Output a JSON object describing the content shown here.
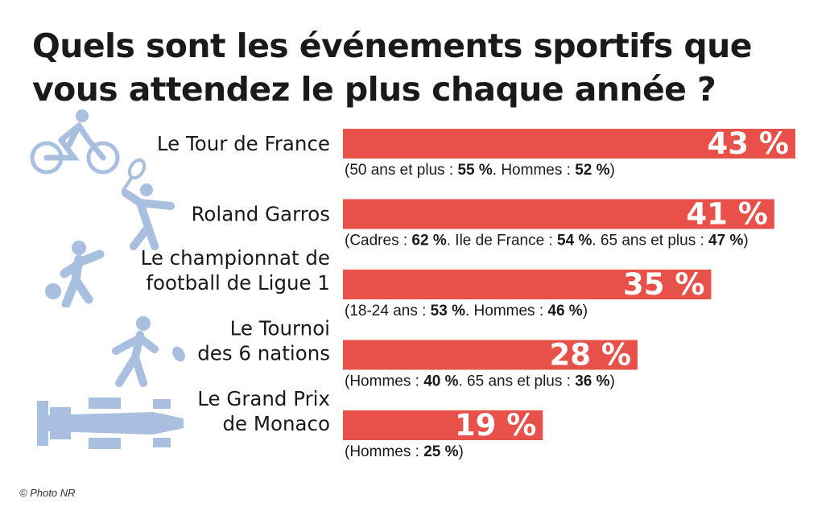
{
  "title": "Quels sont les événements sportifs que vous attendez le plus chaque année ?",
  "credit": "© Photo NR",
  "colors": {
    "bar": "#e8504a",
    "icon": "#a8bfdf",
    "text": "#1a1a1a"
  },
  "icons": [
    "cyclist-icon",
    "tennis-player-icon",
    "football-player-icon",
    "rugby-player-icon",
    "formula1-car-icon"
  ],
  "chart_data": {
    "type": "bar",
    "orientation": "horizontal",
    "categories": [
      "Le Tour de France",
      "Roland Garros",
      "Le championnat de football de Ligue 1",
      "Le Tournoi des 6 nations",
      "Le Grand Prix de Monaco"
    ],
    "category_lines": [
      [
        "Le Tour de France"
      ],
      [
        "Roland Garros"
      ],
      [
        "Le championnat de",
        "football de Ligue 1"
      ],
      [
        "Le Tournoi",
        "des 6 nations"
      ],
      [
        "Le Grand Prix",
        "de Monaco"
      ]
    ],
    "values": [
      43,
      41,
      35,
      28,
      19
    ],
    "value_labels": [
      "43 %",
      "41 %",
      "35 %",
      "28 %",
      "19 %"
    ],
    "notes": [
      [
        [
          "(50 ans et plus : ",
          false
        ],
        [
          "55 %",
          true
        ],
        [
          ". Hommes : ",
          false
        ],
        [
          "52 %",
          true
        ],
        [
          ")",
          false
        ]
      ],
      [
        [
          "(Cadres : ",
          false
        ],
        [
          "62 %",
          true
        ],
        [
          ". Ile de France : ",
          false
        ],
        [
          "54 %",
          true
        ],
        [
          ". 65 ans et plus : ",
          false
        ],
        [
          "47 %",
          true
        ],
        [
          ")",
          false
        ]
      ],
      [
        [
          "(18-24 ans : ",
          false
        ],
        [
          "53 %",
          true
        ],
        [
          ". Hommes : ",
          false
        ],
        [
          "46 %",
          true
        ],
        [
          ")",
          false
        ]
      ],
      [
        [
          "(Hommes : ",
          false
        ],
        [
          "40 %",
          true
        ],
        [
          ". 65 ans et plus : ",
          false
        ],
        [
          "36 %",
          true
        ],
        [
          ")",
          false
        ]
      ],
      [
        [
          "(Hommes : ",
          false
        ],
        [
          "25 %",
          true
        ],
        [
          ")",
          false
        ]
      ]
    ],
    "xlim": [
      0,
      43
    ],
    "grid": false,
    "legend": "none"
  }
}
